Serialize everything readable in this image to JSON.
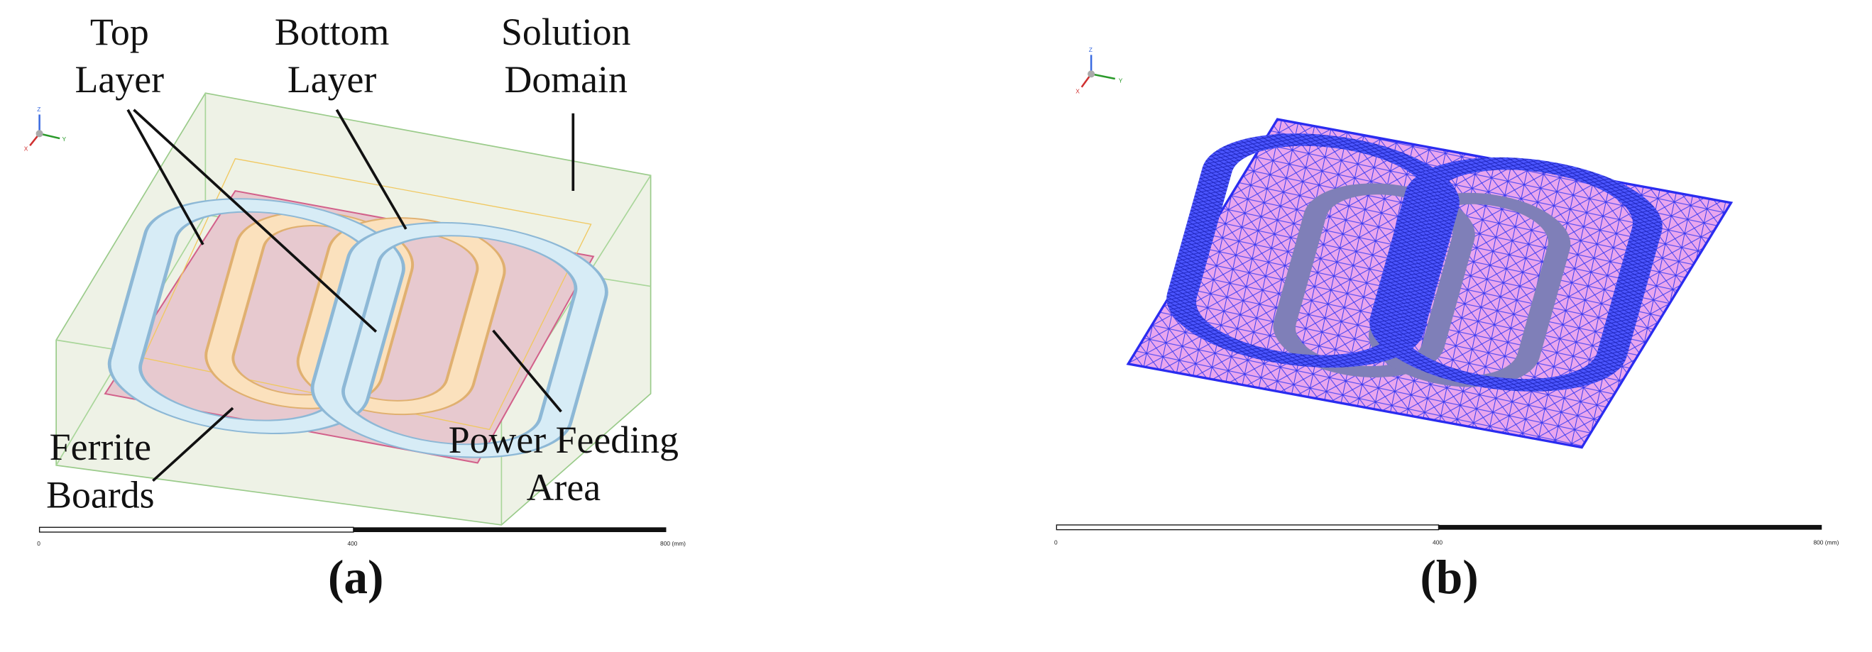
{
  "panels": [
    {
      "label": "(a)",
      "annotations": [
        {
          "lines": [
            "Top",
            "Layer"
          ]
        },
        {
          "lines": [
            "Bottom",
            "Layer"
          ]
        },
        {
          "lines": [
            "Solution",
            "Domain"
          ]
        },
        {
          "lines": [
            "Ferrite",
            "Boards"
          ]
        },
        {
          "lines": [
            "Power Feeding",
            "Area"
          ]
        }
      ],
      "axis_labels": [
        "Z",
        "Y",
        "X"
      ],
      "scale_bar": [
        "0",
        "400",
        "800 (mm)"
      ]
    },
    {
      "label": "(b)",
      "axis_labels": [
        "Z",
        "Y",
        "X"
      ],
      "scale_bar": [
        "0",
        "400",
        "800 (mm)"
      ]
    }
  ]
}
